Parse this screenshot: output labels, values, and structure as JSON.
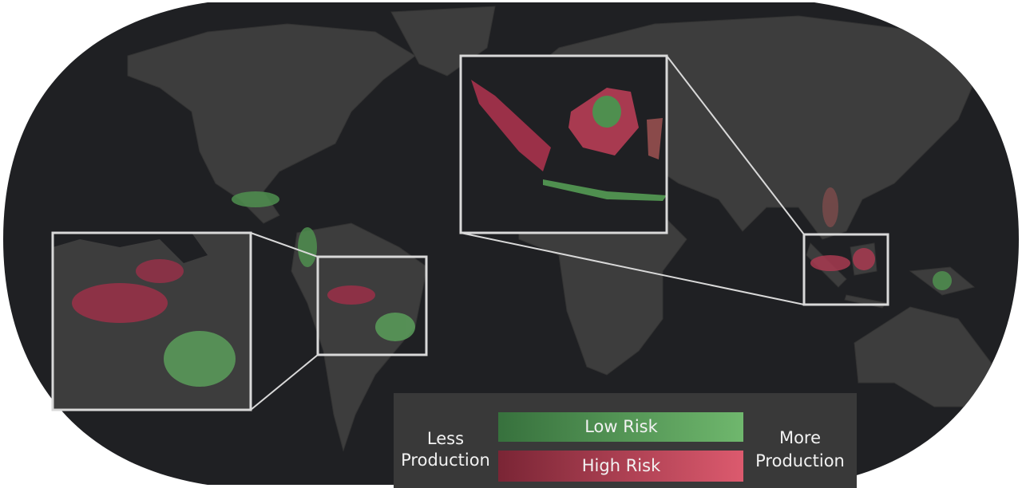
{
  "legend": {
    "low_risk": "Low Risk",
    "high_risk": "High Risk",
    "left": [
      "Less",
      "Production"
    ],
    "right": [
      "More",
      "Production"
    ]
  }
}
